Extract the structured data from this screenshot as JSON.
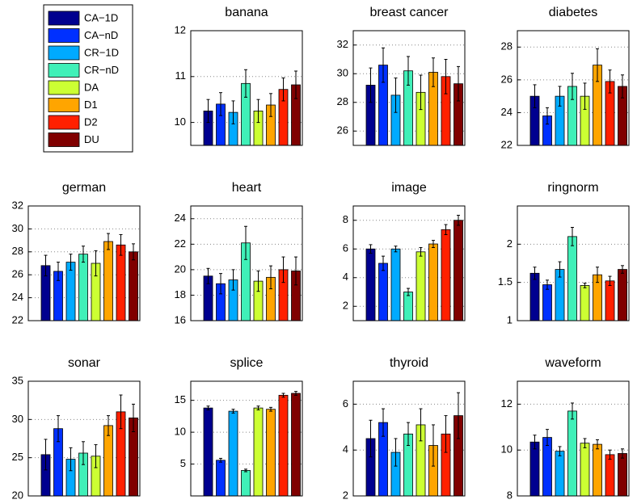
{
  "legend": {
    "names": [
      "CA−1D",
      "CA−nD",
      "CR−1D",
      "CR−nD",
      "DA",
      "D1",
      "D2",
      "DU"
    ],
    "colors": [
      "#00008f",
      "#0030ff",
      "#00aaff",
      "#40f0b8",
      "#ccff33",
      "#ffa500",
      "#ff2000",
      "#800000"
    ]
  },
  "chart_data": [
    {
      "type": "bar",
      "title": "banana",
      "ylim": [
        9.5,
        12
      ],
      "yticks": [
        10,
        11,
        12
      ],
      "grid": true,
      "values": [
        10.25,
        10.4,
        10.22,
        10.85,
        10.25,
        10.38,
        10.72,
        10.82
      ],
      "errors": [
        0.25,
        0.25,
        0.25,
        0.3,
        0.25,
        0.25,
        0.25,
        0.3
      ]
    },
    {
      "type": "bar",
      "title": "breast cancer",
      "ylim": [
        25,
        33
      ],
      "yticks": [
        26,
        28,
        30,
        32
      ],
      "grid": true,
      "values": [
        29.2,
        30.6,
        28.5,
        30.2,
        28.7,
        30.1,
        29.8,
        29.3
      ],
      "errors": [
        1.2,
        1.2,
        1.2,
        1.0,
        1.2,
        1.0,
        1.2,
        1.2
      ]
    },
    {
      "type": "bar",
      "title": "diabetes",
      "ylim": [
        22,
        29
      ],
      "yticks": [
        22,
        24,
        26,
        28
      ],
      "grid": true,
      "values": [
        25.0,
        23.8,
        25.0,
        25.6,
        25.0,
        26.9,
        25.9,
        25.6
      ],
      "errors": [
        0.7,
        0.5,
        0.6,
        0.8,
        0.8,
        1.0,
        0.7,
        0.7
      ]
    },
    {
      "type": "bar",
      "title": "german",
      "ylim": [
        22,
        32
      ],
      "yticks": [
        22,
        24,
        26,
        28,
        30,
        32
      ],
      "grid": true,
      "values": [
        26.8,
        26.3,
        27.1,
        27.8,
        27.0,
        28.9,
        28.6,
        28.0
      ],
      "errors": [
        0.9,
        0.8,
        0.7,
        0.7,
        1.1,
        0.7,
        0.9,
        0.7
      ]
    },
    {
      "type": "bar",
      "title": "heart",
      "ylim": [
        16,
        25
      ],
      "yticks": [
        16,
        18,
        20,
        22,
        24
      ],
      "grid": true,
      "values": [
        19.5,
        18.9,
        19.2,
        22.1,
        19.1,
        19.4,
        20.0,
        19.9
      ],
      "errors": [
        0.6,
        0.8,
        0.8,
        1.3,
        0.8,
        0.9,
        1.0,
        1.1
      ]
    },
    {
      "type": "bar",
      "title": "image",
      "ylim": [
        1,
        9
      ],
      "yticks": [
        2,
        4,
        6,
        8
      ],
      "grid": true,
      "values": [
        6.0,
        5.0,
        6.0,
        3.0,
        5.8,
        6.35,
        7.35,
        8.0
      ],
      "errors": [
        0.3,
        0.5,
        0.2,
        0.25,
        0.3,
        0.25,
        0.35,
        0.35
      ]
    },
    {
      "type": "bar",
      "title": "ringnorm",
      "ylim": [
        1,
        2.5
      ],
      "yticks": [
        1,
        1.5,
        2
      ],
      "grid": true,
      "values": [
        1.62,
        1.47,
        1.67,
        2.1,
        1.46,
        1.6,
        1.52,
        1.67
      ],
      "errors": [
        0.08,
        0.06,
        0.1,
        0.12,
        0.03,
        0.1,
        0.06,
        0.05
      ]
    },
    {
      "type": "bar",
      "title": "sonar",
      "ylim": [
        20,
        35
      ],
      "yticks": [
        20,
        25,
        30,
        35
      ],
      "grid": true,
      "values": [
        25.4,
        28.8,
        24.8,
        25.6,
        25.2,
        29.2,
        31.0,
        30.2
      ],
      "errors": [
        2.0,
        1.7,
        1.5,
        1.5,
        1.5,
        1.3,
        2.2,
        1.8
      ]
    },
    {
      "type": "bar",
      "title": "splice",
      "ylim": [
        0,
        18
      ],
      "yticks": [
        5,
        10,
        15
      ],
      "grid": true,
      "values": [
        13.8,
        5.6,
        13.3,
        4.0,
        13.8,
        13.6,
        15.8,
        16.1
      ],
      "errors": [
        0.3,
        0.3,
        0.3,
        0.2,
        0.3,
        0.3,
        0.3,
        0.3
      ]
    },
    {
      "type": "bar",
      "title": "thyroid",
      "ylim": [
        2,
        7
      ],
      "yticks": [
        2,
        4,
        6
      ],
      "grid": true,
      "values": [
        4.5,
        5.2,
        3.9,
        4.7,
        5.1,
        4.2,
        4.7,
        5.5
      ],
      "errors": [
        0.8,
        0.6,
        0.6,
        0.5,
        0.7,
        0.9,
        0.8,
        1.0
      ]
    },
    {
      "type": "bar",
      "title": "waveform",
      "ylim": [
        8,
        13
      ],
      "yticks": [
        8,
        10,
        12
      ],
      "grid": true,
      "values": [
        10.35,
        10.55,
        9.95,
        11.7,
        10.3,
        10.25,
        9.8,
        9.85
      ],
      "errors": [
        0.3,
        0.35,
        0.2,
        0.35,
        0.2,
        0.2,
        0.2,
        0.2
      ]
    }
  ]
}
